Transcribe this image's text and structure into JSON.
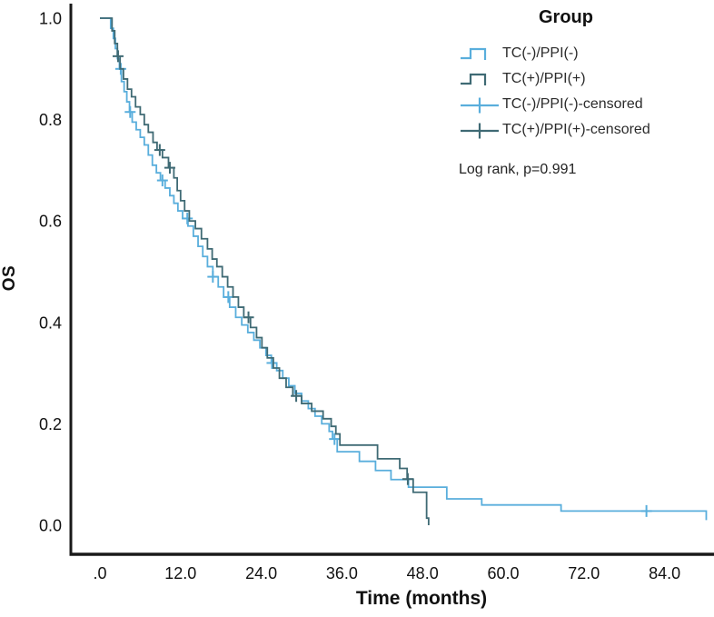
{
  "chart_data": {
    "type": "line",
    "subtype": "kaplan-meier-step-curves",
    "title": "",
    "xlabel": "Time (months)",
    "ylabel": "OS",
    "xlim": [
      0,
      92
    ],
    "ylim": [
      0.0,
      1.0
    ],
    "grid": false,
    "background": "#ffffff",
    "axis_color": "#1a1a1a",
    "x_ticks": {
      "values": [
        0,
        12,
        24,
        36,
        48,
        60,
        72,
        84
      ],
      "labels": [
        ".0",
        "12.0",
        "24.0",
        "36.0",
        "48.0",
        "60.0",
        "72.0",
        "84.0"
      ]
    },
    "y_ticks": {
      "values": [
        0.0,
        0.2,
        0.4,
        0.6,
        0.8,
        1.0
      ],
      "labels": [
        "0.0",
        "0.2",
        "0.4",
        "0.6",
        "0.8",
        "1.0"
      ]
    },
    "legend": {
      "title": "Group",
      "position": "top-right",
      "items": [
        {
          "label": "TC(-)/PPI(-)",
          "marker": "step",
          "series": 0
        },
        {
          "label": "TC(+)/PPI(+)",
          "marker": "step",
          "series": 1
        },
        {
          "label": "TC(-)/PPI(-)-censored",
          "marker": "cross",
          "series": 0
        },
        {
          "label": "TC(+)/PPI(+)-censored",
          "marker": "cross",
          "series": 1
        }
      ]
    },
    "annotation": "Log rank, p=0.991",
    "series": [
      {
        "name": "TC(-)/PPI(-)",
        "color": "#59AEDC",
        "steps": [
          [
            0,
            1.0
          ],
          [
            1.6,
            0.98
          ],
          [
            2.0,
            0.96
          ],
          [
            2.3,
            0.94
          ],
          [
            2.6,
            0.92
          ],
          [
            2.9,
            0.9
          ],
          [
            3.2,
            0.875
          ],
          [
            3.6,
            0.855
          ],
          [
            4.0,
            0.835
          ],
          [
            4.4,
            0.815
          ],
          [
            4.8,
            0.795
          ],
          [
            5.4,
            0.78
          ],
          [
            6.0,
            0.765
          ],
          [
            6.6,
            0.75
          ],
          [
            7.2,
            0.73
          ],
          [
            7.8,
            0.71
          ],
          [
            8.4,
            0.695
          ],
          [
            9.0,
            0.68
          ],
          [
            9.7,
            0.665
          ],
          [
            10.4,
            0.65
          ],
          [
            11.0,
            0.635
          ],
          [
            11.6,
            0.62
          ],
          [
            12.3,
            0.605
          ],
          [
            13.1,
            0.59
          ],
          [
            13.9,
            0.57
          ],
          [
            14.6,
            0.55
          ],
          [
            15.3,
            0.53
          ],
          [
            16.0,
            0.51
          ],
          [
            16.8,
            0.49
          ],
          [
            17.6,
            0.47
          ],
          [
            18.4,
            0.45
          ],
          [
            19.3,
            0.43
          ],
          [
            20.2,
            0.41
          ],
          [
            21.1,
            0.395
          ],
          [
            22.0,
            0.38
          ],
          [
            22.9,
            0.365
          ],
          [
            23.8,
            0.35
          ],
          [
            24.7,
            0.335
          ],
          [
            25.5,
            0.32
          ],
          [
            26.3,
            0.305
          ],
          [
            27.2,
            0.29
          ],
          [
            28.1,
            0.275
          ],
          [
            29.0,
            0.26
          ],
          [
            30.0,
            0.245
          ],
          [
            31.0,
            0.23
          ],
          [
            32.0,
            0.215
          ],
          [
            33.0,
            0.2
          ],
          [
            34.1,
            0.185
          ],
          [
            34.6,
            0.17
          ],
          [
            35.3,
            0.145
          ],
          [
            38.6,
            0.126
          ],
          [
            41.0,
            0.108
          ],
          [
            43.3,
            0.09
          ],
          [
            45.9,
            0.075
          ],
          [
            51.6,
            0.052
          ],
          [
            56.8,
            0.04
          ],
          [
            68.6,
            0.028
          ],
          [
            90.2,
            0.01
          ]
        ],
        "censored_times": [
          3.1,
          4.5,
          9.3,
          13.0,
          16.8,
          19.1,
          25.6,
          34.9,
          81.3
        ]
      },
      {
        "name": "TC(+)/PPI(+)",
        "color": "#3F6A74",
        "steps": [
          [
            0,
            1.0
          ],
          [
            1.8,
            0.975
          ],
          [
            2.2,
            0.95
          ],
          [
            2.6,
            0.925
          ],
          [
            3.0,
            0.9
          ],
          [
            3.5,
            0.88
          ],
          [
            4.1,
            0.86
          ],
          [
            4.7,
            0.845
          ],
          [
            5.3,
            0.825
          ],
          [
            6.0,
            0.81
          ],
          [
            6.6,
            0.79
          ],
          [
            7.2,
            0.775
          ],
          [
            7.9,
            0.755
          ],
          [
            8.5,
            0.74
          ],
          [
            9.3,
            0.725
          ],
          [
            10.2,
            0.705
          ],
          [
            11.0,
            0.685
          ],
          [
            11.5,
            0.66
          ],
          [
            12.0,
            0.64
          ],
          [
            12.6,
            0.62
          ],
          [
            13.3,
            0.6
          ],
          [
            14.2,
            0.585
          ],
          [
            15.1,
            0.565
          ],
          [
            16.0,
            0.545
          ],
          [
            16.7,
            0.525
          ],
          [
            17.4,
            0.51
          ],
          [
            18.2,
            0.49
          ],
          [
            19.0,
            0.47
          ],
          [
            19.8,
            0.45
          ],
          [
            20.6,
            0.43
          ],
          [
            21.4,
            0.41
          ],
          [
            22.4,
            0.39
          ],
          [
            23.3,
            0.37
          ],
          [
            24.1,
            0.35
          ],
          [
            24.9,
            0.33
          ],
          [
            25.8,
            0.31
          ],
          [
            26.7,
            0.29
          ],
          [
            27.7,
            0.272
          ],
          [
            28.7,
            0.255
          ],
          [
            30.0,
            0.24
          ],
          [
            31.5,
            0.225
          ],
          [
            33.2,
            0.21
          ],
          [
            34.4,
            0.195
          ],
          [
            35.1,
            0.18
          ],
          [
            35.7,
            0.158
          ],
          [
            41.3,
            0.131
          ],
          [
            44.6,
            0.112
          ],
          [
            45.7,
            0.091
          ],
          [
            46.6,
            0.065
          ],
          [
            48.6,
            0.014
          ],
          [
            48.9,
            0.0
          ]
        ],
        "censored_times": [
          2.7,
          8.9,
          10.4,
          22.1,
          29.2,
          45.8
        ]
      }
    ]
  }
}
